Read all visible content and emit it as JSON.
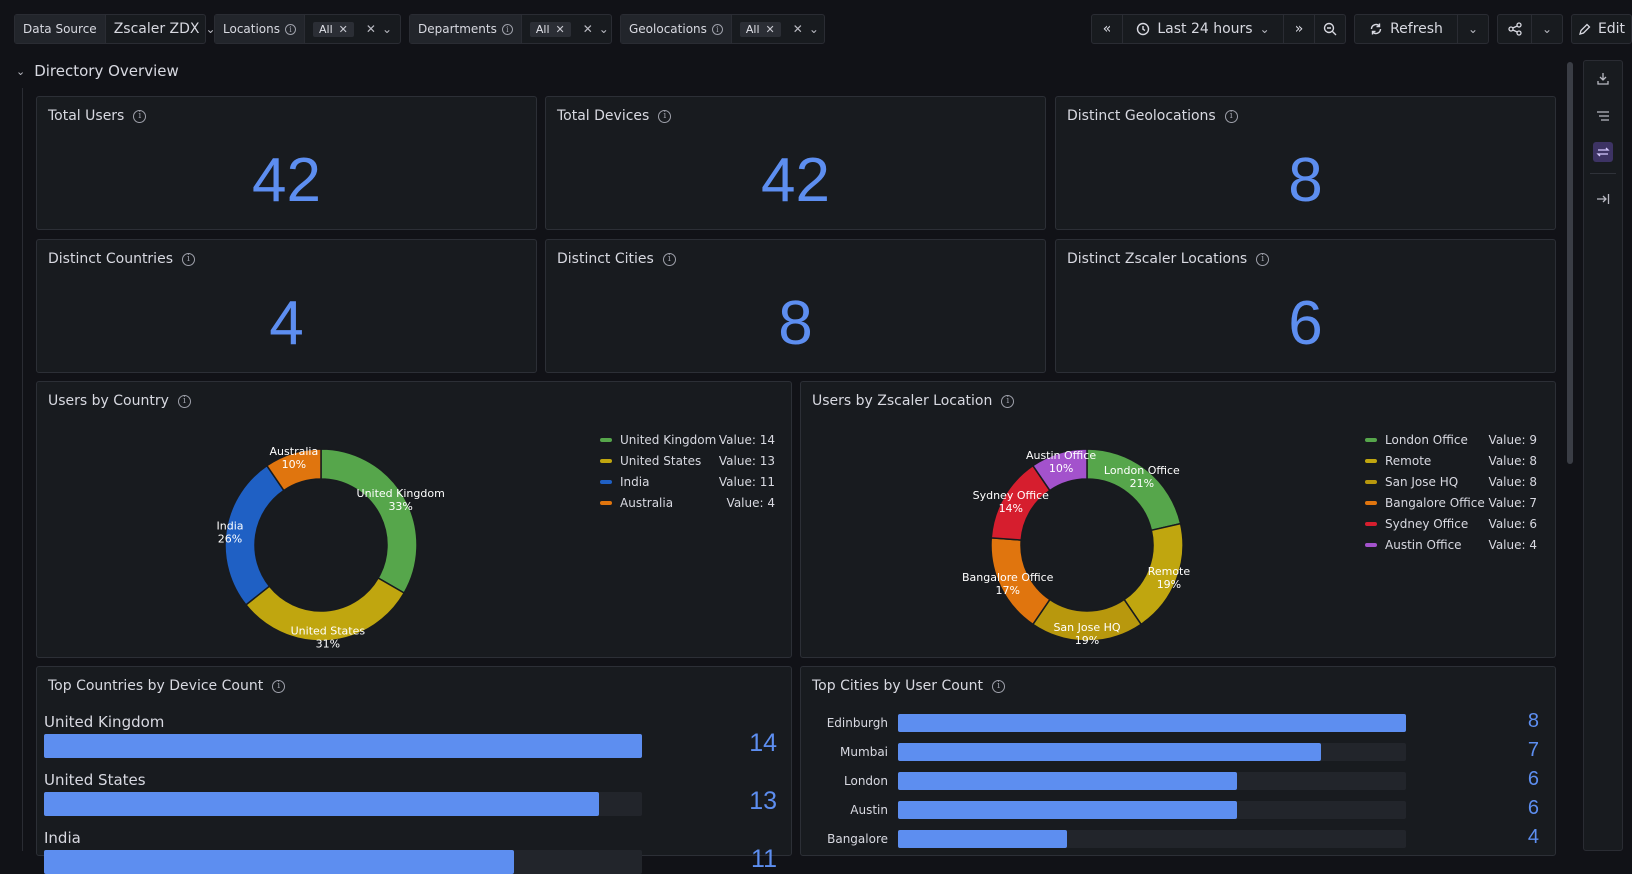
{
  "variables": {
    "data_source": {
      "label": "Data Source",
      "value": "Zscaler ZDX"
    },
    "locations": {
      "label": "Locations",
      "value": "All"
    },
    "departments": {
      "label": "Departments",
      "value": "All"
    },
    "geolocations": {
      "label": "Geolocations",
      "value": "All"
    }
  },
  "toolbar": {
    "time_range": "Last 24 hours",
    "refresh_label": "Refresh",
    "edit_label": "Edit"
  },
  "row": {
    "title": "Directory Overview"
  },
  "stats": [
    {
      "title": "Total Users",
      "value": "42"
    },
    {
      "title": "Total Devices",
      "value": "42"
    },
    {
      "title": "Distinct Geolocations",
      "value": "8"
    },
    {
      "title": "Distinct Countries",
      "value": "4"
    },
    {
      "title": "Distinct Cities",
      "value": "8"
    },
    {
      "title": "Distinct Zscaler Locations",
      "value": "6"
    }
  ],
  "chart_data": [
    {
      "type": "pie",
      "title": "Users by Country",
      "donut": true,
      "legend_placement": "top-right",
      "slices": [
        {
          "name": "United Kingdom",
          "value": 14,
          "percent": "33%",
          "legend_value": "Value: 14",
          "color": "#56a64b"
        },
        {
          "name": "United States",
          "value": 13,
          "percent": "31%",
          "legend_value": "Value: 13",
          "color": "#c0a60f"
        },
        {
          "name": "India",
          "value": 11,
          "percent": "26%",
          "legend_value": "Value: 11",
          "color": "#1f60c4"
        },
        {
          "name": "Australia",
          "value": 4,
          "percent": "10%",
          "legend_value": "Value: 4",
          "color": "#e0750e"
        }
      ]
    },
    {
      "type": "pie",
      "title": "Users by Zscaler Location",
      "donut": true,
      "legend_placement": "top-right",
      "slices": [
        {
          "name": "London Office",
          "value": 9,
          "percent": "21%",
          "legend_value": "Value: 9",
          "color": "#56a64b"
        },
        {
          "name": "Remote",
          "value": 8,
          "percent": "19%",
          "legend_value": "Value: 8",
          "color": "#c0a60f"
        },
        {
          "name": "San Jose HQ",
          "value": 8,
          "percent": "19%",
          "legend_value": "Value: 8",
          "color": "#b8980d"
        },
        {
          "name": "Bangalore Office",
          "value": 7,
          "percent": "17%",
          "legend_value": "Value: 7",
          "color": "#e0750e"
        },
        {
          "name": "Sydney Office",
          "value": 6,
          "percent": "14%",
          "legend_value": "Value: 6",
          "color": "#d61e2e"
        },
        {
          "name": "Austin Office",
          "value": 4,
          "percent": "10%",
          "legend_value": "Value: 4",
          "color": "#a352cc"
        }
      ]
    },
    {
      "type": "bar",
      "title": "Top Countries by Device Count",
      "orientation": "horizontal",
      "categories": [
        "United Kingdom",
        "United States",
        "India"
      ],
      "values": [
        14,
        13,
        11
      ],
      "xlim": [
        0,
        14
      ]
    },
    {
      "type": "bar",
      "title": "Top Cities by User Count",
      "orientation": "horizontal",
      "categories": [
        "Edinburgh",
        "Mumbai",
        "London",
        "Austin",
        "Bangalore"
      ],
      "values": [
        8,
        7,
        6,
        6,
        4
      ],
      "xlim": [
        2,
        8
      ]
    }
  ],
  "colors": {
    "accent": "#5d8ef0",
    "background": "#111217",
    "panel": "#181b1f"
  }
}
